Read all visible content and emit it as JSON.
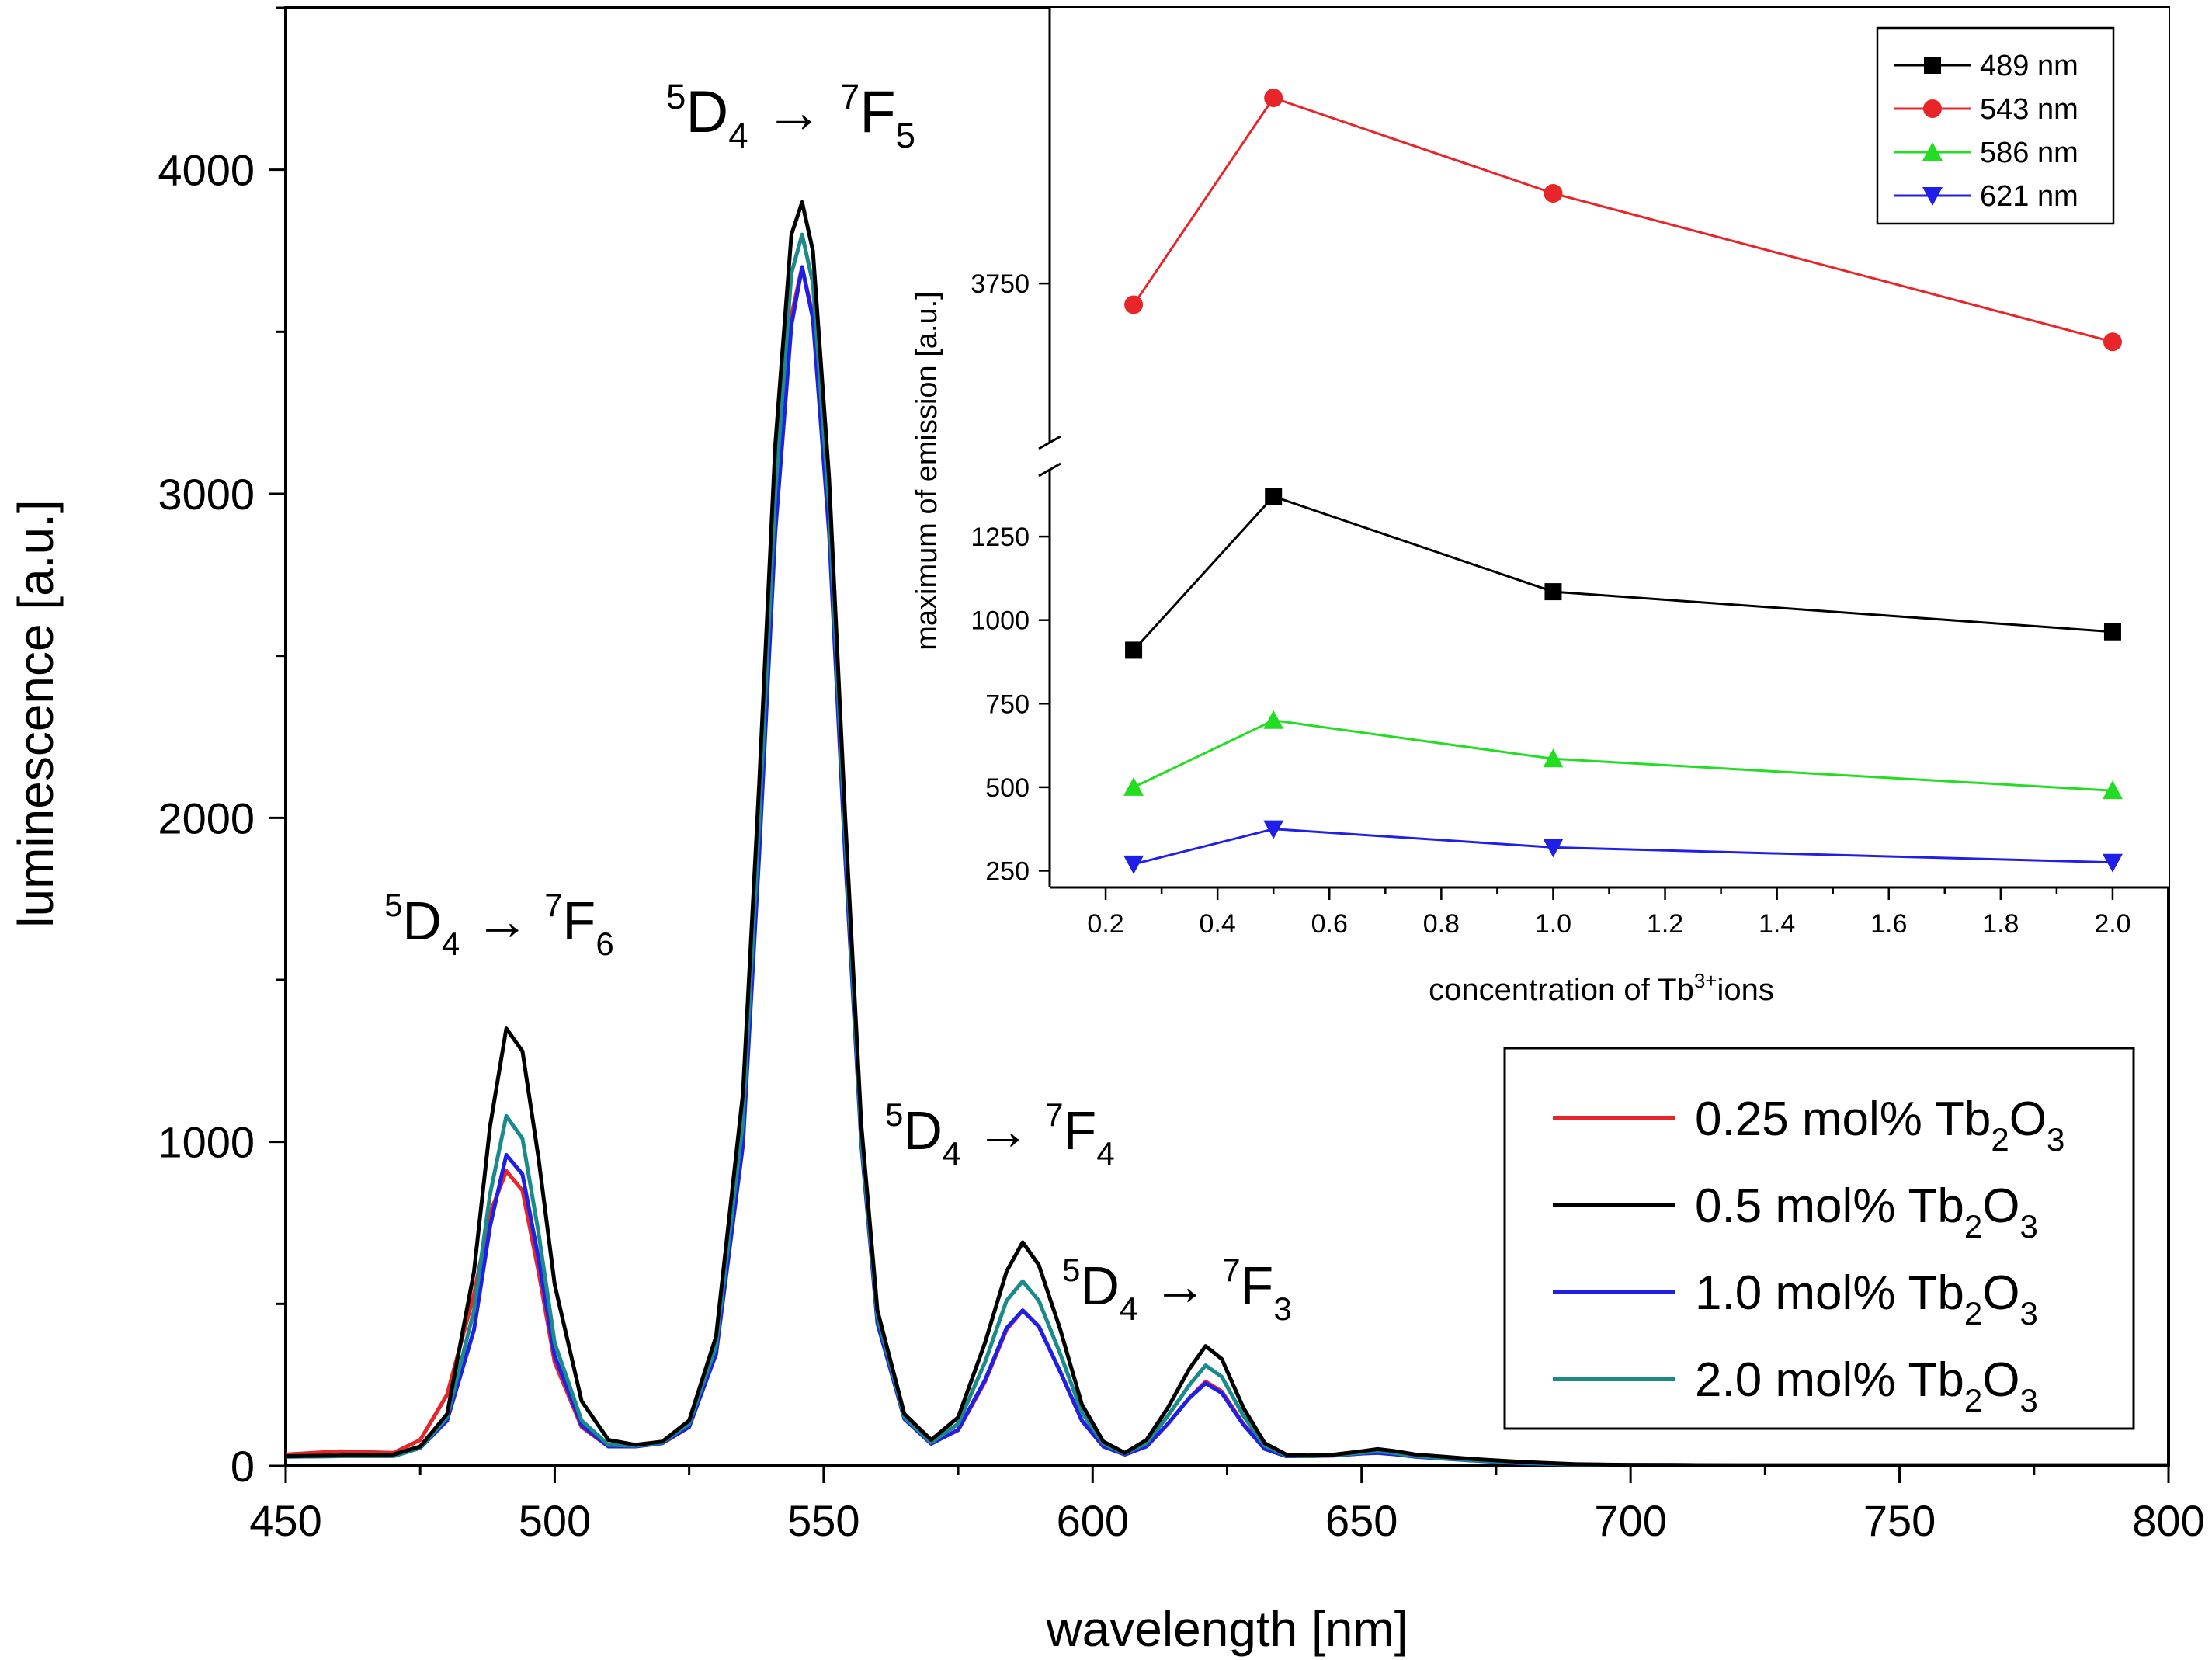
{
  "chart_data": [
    {
      "type": "line",
      "id": "main",
      "xlabel": "wavelength [nm]",
      "ylabel": "luminescence [a.u.]",
      "xlim": [
        450,
        800
      ],
      "ylim": [
        0,
        4500
      ],
      "xticks": [
        450,
        500,
        550,
        600,
        650,
        700,
        750,
        800
      ],
      "xtick_labels": [
        "450",
        "500",
        "550",
        "600",
        "650",
        "700",
        "750",
        "800"
      ],
      "yticks": [
        0,
        1000,
        2000,
        3000,
        4000
      ],
      "ytick_labels": [
        "0",
        "1000",
        "2000",
        "3000",
        "4000"
      ],
      "x": [
        450,
        460,
        470,
        475,
        480,
        485,
        488,
        491,
        494,
        497,
        500,
        505,
        510,
        515,
        520,
        525,
        530,
        535,
        538,
        541,
        544,
        546,
        548,
        551,
        554,
        557,
        560,
        565,
        570,
        575,
        580,
        584,
        587,
        590,
        594,
        598,
        602,
        606,
        610,
        614,
        618,
        621,
        624,
        628,
        632,
        636,
        640,
        645,
        650,
        653,
        656,
        660,
        670,
        680,
        690,
        700,
        720,
        750,
        800
      ],
      "series": [
        {
          "name": "0.25 mol% Tb2O3",
          "legend_label": "0.25 mol% Tb",
          "legend_sub1": "2",
          "legend_mid": "O",
          "legend_sub2": "3",
          "color": "#e8262a",
          "values": [
            35,
            45,
            40,
            80,
            220,
            530,
            780,
            910,
            850,
            600,
            320,
            120,
            60,
            60,
            70,
            120,
            350,
            1000,
            1900,
            2900,
            3550,
            3700,
            3550,
            2900,
            1900,
            1000,
            450,
            150,
            70,
            110,
            260,
            420,
            480,
            430,
            290,
            140,
            60,
            35,
            60,
            130,
            210,
            260,
            230,
            130,
            55,
            30,
            30,
            32,
            38,
            42,
            38,
            30,
            18,
            8,
            4,
            3,
            2,
            2,
            2
          ]
        },
        {
          "name": "0.5 mol% Tb2O3",
          "legend_label": "0.5 mol% Tb",
          "legend_sub1": "2",
          "legend_mid": "O",
          "legend_sub2": "3",
          "color": "#000000",
          "values": [
            30,
            32,
            35,
            60,
            160,
            600,
            1050,
            1350,
            1280,
            950,
            560,
            200,
            80,
            65,
            75,
            140,
            400,
            1150,
            2100,
            3150,
            3800,
            3900,
            3750,
            3050,
            2000,
            1050,
            480,
            160,
            80,
            150,
            380,
            600,
            690,
            620,
            420,
            190,
            75,
            40,
            80,
            180,
            300,
            370,
            330,
            180,
            70,
            35,
            32,
            35,
            45,
            52,
            46,
            35,
            22,
            12,
            5,
            3,
            2,
            2,
            2
          ]
        },
        {
          "name": "1.0 mol% Tb2O3",
          "legend_label": "1.0 mol% Tb",
          "legend_sub1": "2",
          "legend_mid": "O",
          "legend_sub2": "3",
          "color": "#1f1fe8",
          "values": [
            28,
            30,
            30,
            55,
            140,
            420,
            740,
            960,
            900,
            640,
            340,
            125,
            60,
            60,
            70,
            120,
            345,
            990,
            1880,
            2880,
            3520,
            3700,
            3540,
            2880,
            1880,
            990,
            440,
            145,
            68,
            112,
            265,
            425,
            480,
            430,
            290,
            140,
            60,
            35,
            60,
            130,
            210,
            255,
            225,
            128,
            52,
            30,
            30,
            32,
            38,
            40,
            36,
            28,
            17,
            8,
            4,
            3,
            2,
            2,
            2
          ]
        },
        {
          "name": "2.0 mol% Tb2O3",
          "legend_label": "2.0 mol% Tb",
          "legend_sub1": "2",
          "legend_mid": "O",
          "legend_sub2": "3",
          "color": "#1a8a8a",
          "values": [
            28,
            30,
            30,
            55,
            150,
            480,
            840,
            1080,
            1010,
            720,
            380,
            140,
            65,
            62,
            72,
            130,
            370,
            1060,
            1980,
            3000,
            3680,
            3800,
            3650,
            2960,
            1940,
            1010,
            460,
            150,
            72,
            130,
            320,
            510,
            570,
            510,
            345,
            165,
            68,
            38,
            70,
            155,
            250,
            310,
            275,
            155,
            62,
            32,
            30,
            33,
            40,
            45,
            40,
            30,
            18,
            9,
            4,
            3,
            2,
            2,
            2
          ]
        }
      ],
      "annotations": [
        {
          "sup1": "5",
          "base1": "D",
          "sub1": "4",
          "sup2": "7",
          "base2": "F",
          "sub2": "6"
        },
        {
          "sup1": "5",
          "base1": "D",
          "sub1": "4",
          "sup2": "7",
          "base2": "F",
          "sub2": "5"
        },
        {
          "sup1": "5",
          "base1": "D",
          "sub1": "4",
          "sup2": "7",
          "base2": "F",
          "sub2": "4"
        },
        {
          "sup1": "5",
          "base1": "D",
          "sub1": "4",
          "sup2": "7",
          "base2": "F",
          "sub2": "3"
        }
      ],
      "legend_position": "lower-right"
    },
    {
      "type": "line",
      "id": "inset",
      "xlabel_pre": "concentration of Tb",
      "xlabel_sup": "3+",
      "xlabel_post": "ions",
      "ylabel": "maximum of emission [a.u.]",
      "xlim": [
        0.1,
        2.1
      ],
      "xticks": [
        0.2,
        0.4,
        0.6,
        0.8,
        1.0,
        1.2,
        1.4,
        1.6,
        1.8,
        2.0
      ],
      "xtick_labels": [
        "0.2",
        "0.4",
        "0.6",
        "0.8",
        "1.0",
        "1.2",
        "1.4",
        "1.6",
        "1.8",
        "2.0"
      ],
      "axis_break": true,
      "ylim_lower": [
        200,
        1450
      ],
      "yticks_lower": [
        250,
        500,
        750,
        1000,
        1250
      ],
      "ytick_labels_lower": [
        "250",
        "500",
        "750",
        "1000",
        "1250"
      ],
      "ylim_upper": [
        3600,
        4010
      ],
      "yticks_upper": [
        3750
      ],
      "ytick_labels_upper": [
        "3750"
      ],
      "x": [
        0.25,
        0.5,
        1.0,
        2.0
      ],
      "series": [
        {
          "name": "489 nm",
          "color": "#000000",
          "marker": "square",
          "values": [
            910,
            1370,
            1085,
            965
          ]
        },
        {
          "name": "543 nm",
          "color": "#e8262a",
          "marker": "circle",
          "values": [
            3730,
            3925,
            3835,
            3695
          ]
        },
        {
          "name": "586 nm",
          "color": "#22dd22",
          "marker": "triangle-up",
          "values": [
            500,
            700,
            585,
            490
          ]
        },
        {
          "name": "621 nm",
          "color": "#1f1fe8",
          "marker": "triangle-down",
          "values": [
            270,
            375,
            320,
            275
          ]
        }
      ],
      "legend_position": "top-right"
    }
  ]
}
